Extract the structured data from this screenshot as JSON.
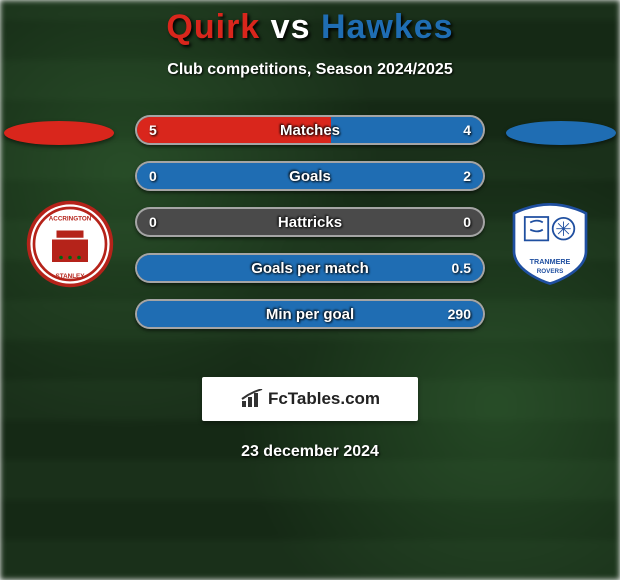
{
  "title": {
    "player1": "Quirk",
    "vs": "vs",
    "player2": "Hawkes"
  },
  "subtitle": "Club competitions, Season 2024/2025",
  "colors": {
    "player1": "#d9261c",
    "player2": "#1f6db3",
    "bar_bg": "#4a4a4a",
    "bar_border": "rgba(255,255,255,0.5)"
  },
  "stats": [
    {
      "label": "Matches",
      "left_val": "5",
      "right_val": "4",
      "left_pct": 56,
      "right_pct": 44
    },
    {
      "label": "Goals",
      "left_val": "0",
      "right_val": "2",
      "left_pct": 0,
      "right_pct": 100
    },
    {
      "label": "Hattricks",
      "left_val": "0",
      "right_val": "0",
      "left_pct": 0,
      "right_pct": 0
    },
    {
      "label": "Goals per match",
      "left_val": "",
      "right_val": "0.5",
      "left_pct": 0,
      "right_pct": 100
    },
    {
      "label": "Min per goal",
      "left_val": "",
      "right_val": "290",
      "left_pct": 0,
      "right_pct": 100
    }
  ],
  "crests": {
    "left": {
      "name": "Accrington Stanley",
      "bg": "#ffffff",
      "fg": "#b5231a"
    },
    "right": {
      "name": "Tranmere Rovers",
      "bg": "#ffffff",
      "fg": "#1f4fa0"
    }
  },
  "brand": {
    "text": "FcTables.com"
  },
  "date": "23 december 2024"
}
